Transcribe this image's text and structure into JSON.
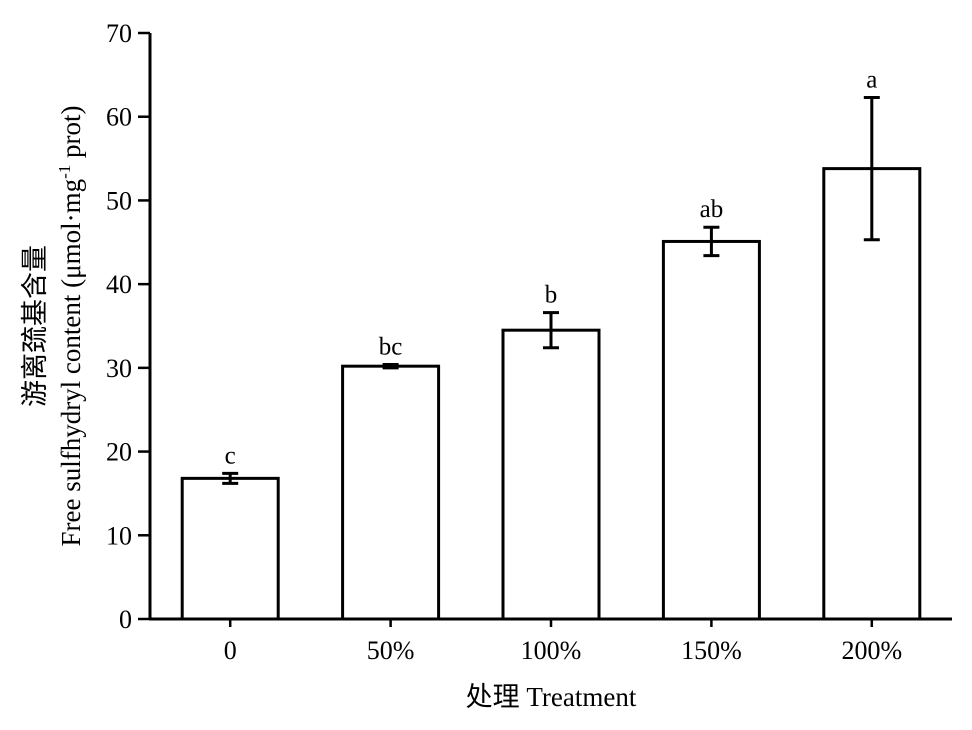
{
  "chart_data": {
    "type": "bar",
    "categories": [
      "0",
      "50%",
      "100%",
      "150%",
      "200%"
    ],
    "values": [
      16.8,
      30.2,
      34.5,
      45.1,
      53.8
    ],
    "errors": [
      0.6,
      0.2,
      2.1,
      1.7,
      8.5
    ],
    "significance": [
      "c",
      "bc",
      "b",
      "ab",
      "a"
    ],
    "xlabel": "处理 Treatment",
    "ylabel_cn": "游离巯基含量",
    "ylabel_en": "Free sulfhydryl content (μmol·mg",
    "ylabel_sup": "-1",
    "ylabel_tail": " prot)",
    "ylim": [
      0,
      70
    ],
    "yticks": [
      "0",
      "10",
      "20",
      "30",
      "40",
      "50",
      "60",
      "70"
    ],
    "grid": false,
    "colors": {
      "bar_fill": "#ffffff",
      "bar_stroke": "#000000",
      "axis": "#000000"
    }
  }
}
